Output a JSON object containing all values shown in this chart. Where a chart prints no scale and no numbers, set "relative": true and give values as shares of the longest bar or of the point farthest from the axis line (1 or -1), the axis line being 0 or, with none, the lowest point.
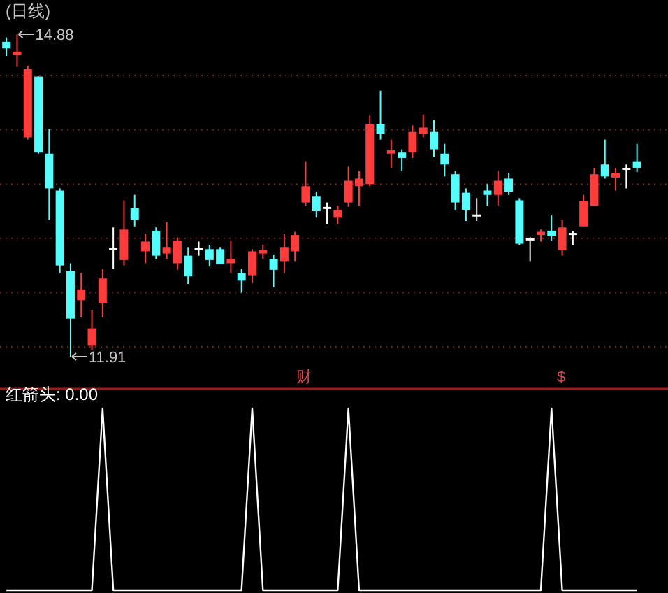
{
  "chart_data": [
    {
      "type": "candlestick",
      "title": "(日线)",
      "categories": [
        null,
        null,
        null,
        null,
        null,
        null,
        null,
        null,
        null,
        null,
        null,
        null,
        null,
        null,
        null,
        null,
        null,
        null,
        null,
        null,
        null,
        null,
        null,
        null,
        null,
        null,
        null,
        null,
        null,
        null,
        null,
        null,
        null,
        null,
        null,
        null,
        null,
        null,
        null,
        null,
        null,
        null,
        null,
        null,
        null,
        null,
        null,
        null,
        null,
        null,
        null,
        null,
        null,
        null,
        null,
        null,
        null,
        null,
        null,
        null
      ],
      "ohlc": [
        [
          14.81,
          14.85,
          14.68,
          14.75
        ],
        [
          14.69,
          14.88,
          14.58,
          14.72
        ],
        [
          13.93,
          14.59,
          13.91,
          14.56
        ],
        [
          14.49,
          14.49,
          13.78,
          13.79
        ],
        [
          13.78,
          14.01,
          13.17,
          13.46
        ],
        [
          13.44,
          13.46,
          12.68,
          12.75
        ],
        [
          12.7,
          12.77,
          11.91,
          12.26
        ],
        [
          12.43,
          12.68,
          12.27,
          12.53
        ],
        [
          12.01,
          12.34,
          11.97,
          12.17
        ],
        [
          12.4,
          12.72,
          12.27,
          12.63
        ],
        [
          12.9,
          13.1,
          12.72,
          12.9
        ],
        [
          12.8,
          13.35,
          12.75,
          13.08
        ],
        [
          13.28,
          13.4,
          13.11,
          13.17
        ],
        [
          12.88,
          13.04,
          12.77,
          12.97
        ],
        [
          13.07,
          13.1,
          12.81,
          12.84
        ],
        [
          12.86,
          13.15,
          12.81,
          12.92
        ],
        [
          12.77,
          13.01,
          12.71,
          12.98
        ],
        [
          12.84,
          12.92,
          12.58,
          12.65
        ],
        [
          12.9,
          12.97,
          12.84,
          12.9
        ],
        [
          12.9,
          12.94,
          12.74,
          12.8
        ],
        [
          12.9,
          12.92,
          12.76,
          12.76
        ],
        [
          12.77,
          12.98,
          12.68,
          12.81
        ],
        [
          12.68,
          12.72,
          12.5,
          12.61
        ],
        [
          12.66,
          12.9,
          12.59,
          12.88
        ],
        [
          12.86,
          12.94,
          12.81,
          12.89
        ],
        [
          12.81,
          12.85,
          12.55,
          12.71
        ],
        [
          12.79,
          13.04,
          12.68,
          12.92
        ],
        [
          12.88,
          13.06,
          12.79,
          13.03
        ],
        [
          13.33,
          13.71,
          13.3,
          13.48
        ],
        [
          13.39,
          13.43,
          13.19,
          13.25
        ],
        [
          13.28,
          13.33,
          13.13,
          13.28
        ],
        [
          13.19,
          13.3,
          13.13,
          13.26
        ],
        [
          13.33,
          13.66,
          13.29,
          13.53
        ],
        [
          13.48,
          13.62,
          13.3,
          13.55
        ],
        [
          13.5,
          14.13,
          13.48,
          14.05
        ],
        [
          14.05,
          14.36,
          13.91,
          13.96
        ],
        [
          13.78,
          13.91,
          13.65,
          13.81
        ],
        [
          13.79,
          13.82,
          13.62,
          13.74
        ],
        [
          13.79,
          14.04,
          13.74,
          13.98
        ],
        [
          13.96,
          14.14,
          13.93,
          14.02
        ],
        [
          13.98,
          14.09,
          13.75,
          13.82
        ],
        [
          13.78,
          13.87,
          13.57,
          13.68
        ],
        [
          13.59,
          13.62,
          13.26,
          13.33
        ],
        [
          13.42,
          13.46,
          13.16,
          13.26
        ],
        [
          13.21,
          13.37,
          13.16,
          13.21
        ],
        [
          13.44,
          13.5,
          13.3,
          13.4
        ],
        [
          13.4,
          13.62,
          13.3,
          13.53
        ],
        [
          13.55,
          13.6,
          13.4,
          13.43
        ],
        [
          13.35,
          13.37,
          12.94,
          12.95
        ],
        [
          12.99,
          13.01,
          12.79,
          12.99
        ],
        [
          13.03,
          13.08,
          12.97,
          13.06
        ],
        [
          13.07,
          13.21,
          12.98,
          13.02
        ],
        [
          12.89,
          13.17,
          12.84,
          13.1
        ],
        [
          13.04,
          13.07,
          12.94,
          13.04
        ],
        [
          13.11,
          13.4,
          13.11,
          13.34
        ],
        [
          13.3,
          13.65,
          13.3,
          13.59
        ],
        [
          13.68,
          13.91,
          13.55,
          13.57
        ],
        [
          13.56,
          13.65,
          13.44,
          13.6
        ],
        [
          13.64,
          13.68,
          13.46,
          13.64
        ],
        [
          13.71,
          13.87,
          13.61,
          13.65
        ]
      ],
      "colors": [
        "#54fcfc",
        "#ff3c3c",
        "#ff3c3c",
        "#54fcfc",
        "#54fcfc",
        "#54fcfc",
        "#54fcfc",
        "#ff3c3c",
        "#ff3c3c",
        "#ff3c3c",
        "#ffffff",
        "#ff3c3c",
        "#54fcfc",
        "#ff3c3c",
        "#54fcfc",
        "#ff3c3c",
        "#ff3c3c",
        "#54fcfc",
        "#ffffff",
        "#54fcfc",
        "#54fcfc",
        "#ff3c3c",
        "#54fcfc",
        "#ff3c3c",
        "#ff3c3c",
        "#54fcfc",
        "#ff3c3c",
        "#ff3c3c",
        "#ff3c3c",
        "#54fcfc",
        "#ffffff",
        "#ff3c3c",
        "#ff3c3c",
        "#ff3c3c",
        "#ff3c3c",
        "#54fcfc",
        "#ff3c3c",
        "#54fcfc",
        "#ff3c3c",
        "#ff3c3c",
        "#54fcfc",
        "#54fcfc",
        "#54fcfc",
        "#54fcfc",
        "#ffffff",
        "#54fcfc",
        "#ff3c3c",
        "#54fcfc",
        "#54fcfc",
        "#ffffff",
        "#ff3c3c",
        "#54fcfc",
        "#ff3c3c",
        "#ffffff",
        "#ff3c3c",
        "#ff3c3c",
        "#54fcfc",
        "#ff3c3c",
        "#ffffff",
        "#54fcfc"
      ],
      "yticks": [
        {
          "value": 12.0,
          "label": null
        },
        {
          "value": 12.5,
          "label": null
        },
        {
          "value": 13.0,
          "label": null
        },
        {
          "value": 13.5,
          "label": null
        },
        {
          "value": 14.0,
          "label": null
        },
        {
          "value": 14.5,
          "label": null
        }
      ],
      "grid": "y",
      "annotations": [
        "14.88",
        "11.91",
        "财",
        "$"
      ]
    },
    {
      "type": "line",
      "title": "红箭头: 0.00",
      "relative": true,
      "color": "#ffffff",
      "categories": [
        null,
        null,
        null,
        null,
        null,
        null,
        null,
        null,
        null,
        null,
        null,
        null,
        null,
        null,
        null,
        null,
        null,
        null,
        null,
        null,
        null,
        null,
        null,
        null,
        null,
        null,
        null,
        null,
        null,
        null,
        null,
        null,
        null,
        null,
        null,
        null,
        null,
        null,
        null,
        null,
        null,
        null,
        null,
        null,
        null,
        null,
        null,
        null,
        null,
        null,
        null,
        null,
        null,
        null,
        null,
        null,
        null,
        null,
        null,
        null
      ],
      "values": [
        0,
        0,
        0,
        0,
        0,
        0,
        0,
        0,
        0,
        1,
        0,
        0,
        0,
        0,
        0,
        0,
        0,
        0,
        0,
        0,
        0,
        0,
        0,
        1,
        0,
        0,
        0,
        0,
        0,
        0,
        0,
        0,
        1,
        0,
        0,
        0,
        0,
        0,
        0,
        0,
        0,
        0,
        0,
        0,
        0,
        0,
        0,
        0,
        0,
        0,
        0,
        1,
        0,
        0,
        0,
        0,
        0,
        0,
        0,
        0
      ]
    }
  ]
}
